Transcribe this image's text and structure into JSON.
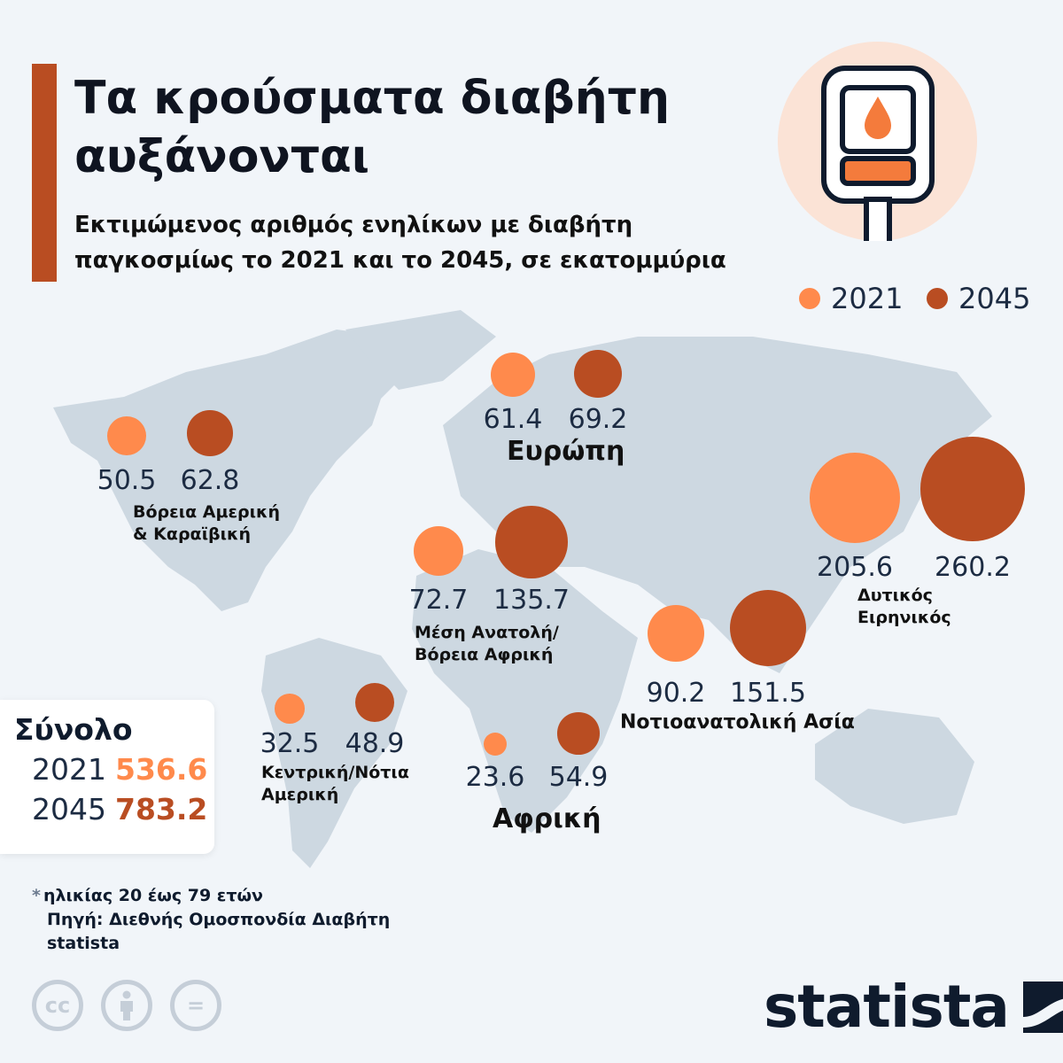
{
  "title": "Τα κρούσματα διαβήτη αυξάνονται",
  "subtitle": "Εκτιμώμενος αριθμός ενηλίκων με διαβήτη παγκοσμίως το 2021 και το 2045, σε εκατομμύρια",
  "icon": "glucose-meter-icon",
  "chart_data": {
    "type": "bubble-map",
    "title": "Τα κρούσματα διαβήτη αυξάνονται",
    "series": [
      {
        "name": "2021",
        "color": "#ff8a4c"
      },
      {
        "name": "2045",
        "color": "#b94d22"
      }
    ],
    "legend_placement": "top-right",
    "regions": [
      {
        "name": "Βόρεια Αμερική\n& Καραϊβική",
        "values": [
          50.5,
          62.8
        ]
      },
      {
        "name": "Ευρώπη",
        "values": [
          61.4,
          69.2
        ]
      },
      {
        "name": "Μέση Ανατολή/\nΒόρεια Αφρική",
        "values": [
          72.7,
          135.7
        ]
      },
      {
        "name": "Νοτιοανατολική Ασία",
        "values": [
          90.2,
          151.5
        ]
      },
      {
        "name": "Δυτικός\nΕιρηνικός",
        "values": [
          205.6,
          260.2
        ]
      },
      {
        "name": "Κεντρική/Νότια\nΑμερική",
        "values": [
          32.5,
          48.9
        ]
      },
      {
        "name": "Αφρική",
        "values": [
          23.6,
          54.9
        ]
      }
    ]
  },
  "legend": [
    "2021",
    "2045"
  ],
  "total": {
    "label": "Σύνολο",
    "rows": [
      {
        "year": "2021",
        "value": "536.6"
      },
      {
        "year": "2045",
        "value": "783.2"
      }
    ]
  },
  "notes": {
    "star": "*",
    "age": "ηλικίας 20 έως 79 ετών",
    "source": "Πηγή: Διεθνής Ομοσπονδία Διαβήτη",
    "brand": "statista"
  },
  "license_icons": [
    "cc-icon",
    "attribution-icon",
    "no-derivatives-icon"
  ],
  "logo": "statista"
}
